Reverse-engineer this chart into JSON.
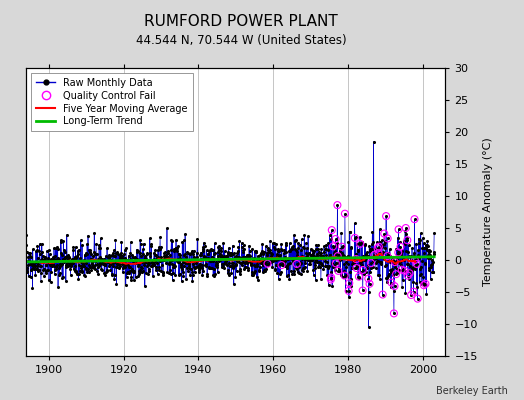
{
  "title": "RUMFORD POWER PLANT",
  "subtitle": "44.544 N, 70.544 W (United States)",
  "ylabel": "Temperature Anomaly (°C)",
  "credit": "Berkeley Earth",
  "year_start": 1893,
  "year_end": 2003,
  "xlim": [
    1894,
    2006
  ],
  "ylim": [
    -15,
    30
  ],
  "yticks": [
    -15,
    -10,
    -5,
    0,
    5,
    10,
    15,
    20,
    25,
    30
  ],
  "xticks": [
    1900,
    1920,
    1940,
    1960,
    1980,
    2000
  ],
  "raw_color": "#0000cc",
  "marker_color": "#000000",
  "qc_color": "#ff00ff",
  "ma_color": "#ff0000",
  "trend_color": "#00bb00",
  "bg_color": "#d8d8d8",
  "plot_bg": "#ffffff",
  "grid_color": "#bbbbbb",
  "noise_scale": 1.6,
  "seed": 12
}
